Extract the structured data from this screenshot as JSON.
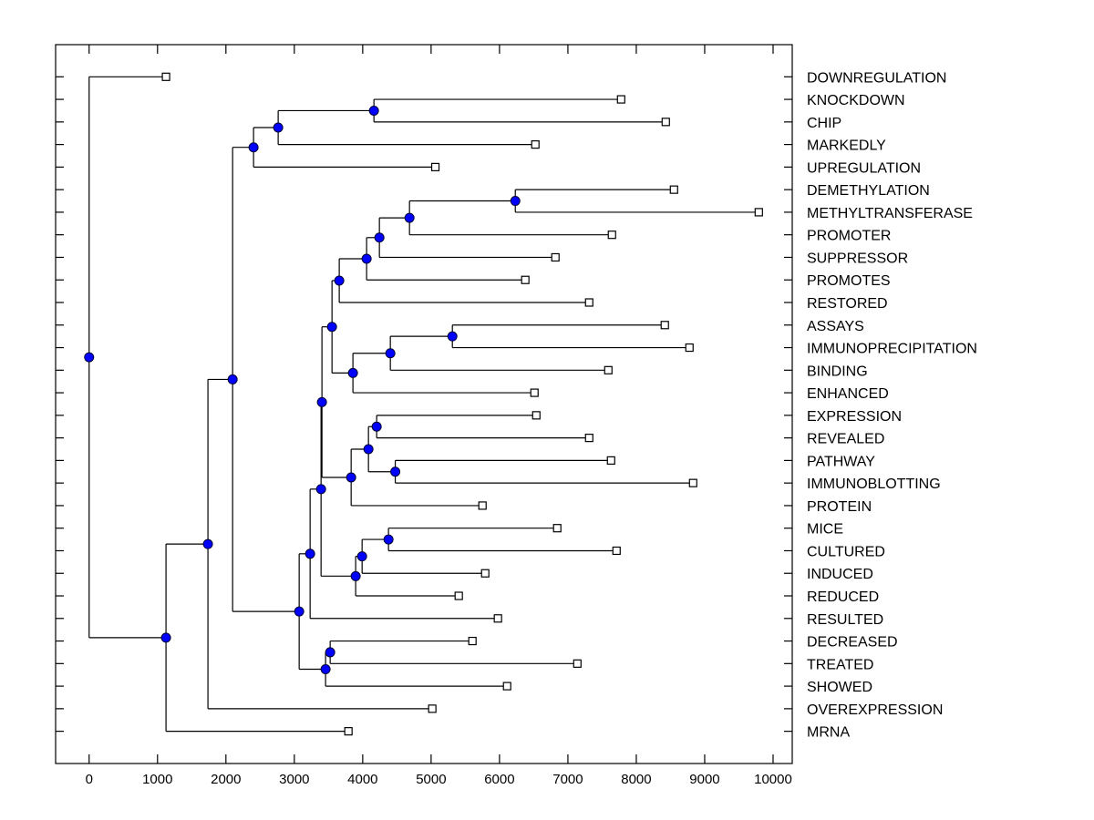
{
  "chart_data": {
    "type": "dendrogram",
    "title": "",
    "xlabel": "",
    "ylabel": "",
    "orientation": "horizontal",
    "xlim": [
      -490,
      10280
    ],
    "xticks": [
      0,
      1000,
      2000,
      3000,
      4000,
      5000,
      6000,
      7000,
      8000,
      9000,
      10000
    ],
    "xtick_labels": [
      "0",
      "1000",
      "2000",
      "3000",
      "4000",
      "5000",
      "6000",
      "7000",
      "8000",
      "9000",
      "10000"
    ],
    "grid": false,
    "colors": {
      "node_fill": "#0000FF",
      "leaf_fill": "#FFFFFF",
      "line": "#000000"
    },
    "leaves": [
      {
        "label": "DOWNREGULATION",
        "value": 1124
      },
      {
        "label": "KNOCKDOWN",
        "value": 7778
      },
      {
        "label": "CHIP",
        "value": 8431
      },
      {
        "label": "MARKEDLY",
        "value": 6524
      },
      {
        "label": "UPREGULATION",
        "value": 5062
      },
      {
        "label": "DEMETHYLATION",
        "value": 8551
      },
      {
        "label": "METHYLTRANSFERASE",
        "value": 9791
      },
      {
        "label": "PROMOTER",
        "value": 7644
      },
      {
        "label": "SUPPRESSOR",
        "value": 6817
      },
      {
        "label": "PROMOTES",
        "value": 6377
      },
      {
        "label": "RESTORED",
        "value": 7311
      },
      {
        "label": "ASSAYS",
        "value": 8417
      },
      {
        "label": "IMMUNOPRECIPITATION",
        "value": 8777
      },
      {
        "label": "BINDING",
        "value": 7591
      },
      {
        "label": "ENHANCED",
        "value": 6511
      },
      {
        "label": "EXPRESSION",
        "value": 6538
      },
      {
        "label": "REVEALED",
        "value": 7311
      },
      {
        "label": "PATHWAY",
        "value": 7631
      },
      {
        "label": "IMMUNOBLOTTING",
        "value": 8831
      },
      {
        "label": "PROTEIN",
        "value": 5751
      },
      {
        "label": "MICE",
        "value": 6844
      },
      {
        "label": "CULTURED",
        "value": 7711
      },
      {
        "label": "INDUCED",
        "value": 5791
      },
      {
        "label": "REDUCED",
        "value": 5404
      },
      {
        "label": "RESULTED",
        "value": 5977
      },
      {
        "label": "DECREASED",
        "value": 5604
      },
      {
        "label": "TREATED",
        "value": 7138
      },
      {
        "label": "SHOWED",
        "value": 6111
      },
      {
        "label": "OVEREXPRESSION",
        "value": 5017
      },
      {
        "label": "MRNA",
        "value": 3791
      }
    ],
    "nodes": [
      {
        "id": "n1",
        "value": 4164,
        "children": [
          "L1",
          "L2"
        ]
      },
      {
        "id": "n2",
        "value": 2764,
        "children": [
          "n1",
          "L3"
        ]
      },
      {
        "id": "n3",
        "value": 2404,
        "children": [
          "n2",
          "L4"
        ]
      },
      {
        "id": "n4",
        "value": 6231,
        "children": [
          "L5",
          "L6"
        ]
      },
      {
        "id": "n5",
        "value": 4684,
        "children": [
          "n4",
          "L7"
        ]
      },
      {
        "id": "n6",
        "value": 4244,
        "children": [
          "n5",
          "L8"
        ]
      },
      {
        "id": "n7",
        "value": 4057,
        "children": [
          "n6",
          "L9"
        ]
      },
      {
        "id": "n8",
        "value": 3657,
        "children": [
          "n7",
          "L10"
        ]
      },
      {
        "id": "n9",
        "value": 5311,
        "children": [
          "L11",
          "L12"
        ]
      },
      {
        "id": "n10",
        "value": 4404,
        "children": [
          "n9",
          "L13"
        ]
      },
      {
        "id": "n11",
        "value": 3857,
        "children": [
          "n10",
          "L14"
        ]
      },
      {
        "id": "n12",
        "value": 3551,
        "children": [
          "n8",
          "n11"
        ]
      },
      {
        "id": "n13",
        "value": 4204,
        "children": [
          "L15",
          "L16"
        ]
      },
      {
        "id": "n14",
        "value": 4476,
        "children": [
          "L17",
          "L18"
        ]
      },
      {
        "id": "n15",
        "value": 4084,
        "children": [
          "n13",
          "n14"
        ]
      },
      {
        "id": "n16",
        "value": 3831,
        "children": [
          "n15",
          "L19"
        ]
      },
      {
        "id": "n17",
        "value": 3404,
        "children": [
          "n12",
          "n16"
        ]
      },
      {
        "id": "n18",
        "value": 4377,
        "children": [
          "L20",
          "L21"
        ]
      },
      {
        "id": "n19",
        "value": 3991,
        "children": [
          "n18",
          "L22"
        ]
      },
      {
        "id": "n20",
        "value": 3897,
        "children": [
          "n19",
          "L23"
        ]
      },
      {
        "id": "n21",
        "value": 3391,
        "children": [
          "n17",
          "n20"
        ]
      },
      {
        "id": "n22",
        "value": 3231,
        "children": [
          "n21",
          "L24"
        ]
      },
      {
        "id": "n23",
        "value": 3524,
        "children": [
          "L25",
          "L26"
        ]
      },
      {
        "id": "n24",
        "value": 3457,
        "children": [
          "n23",
          "L27"
        ]
      },
      {
        "id": "n25",
        "value": 3071,
        "children": [
          "n22",
          "n24"
        ]
      },
      {
        "id": "n26",
        "value": 2098,
        "children": [
          "n3",
          "n25"
        ]
      },
      {
        "id": "n27",
        "value": 1737,
        "children": [
          "n26",
          "L28"
        ]
      },
      {
        "id": "n28",
        "value": 1124,
        "children": [
          "n27",
          "L29"
        ]
      },
      {
        "id": "root",
        "value": 0,
        "children": [
          "L0",
          "n28"
        ]
      }
    ]
  }
}
